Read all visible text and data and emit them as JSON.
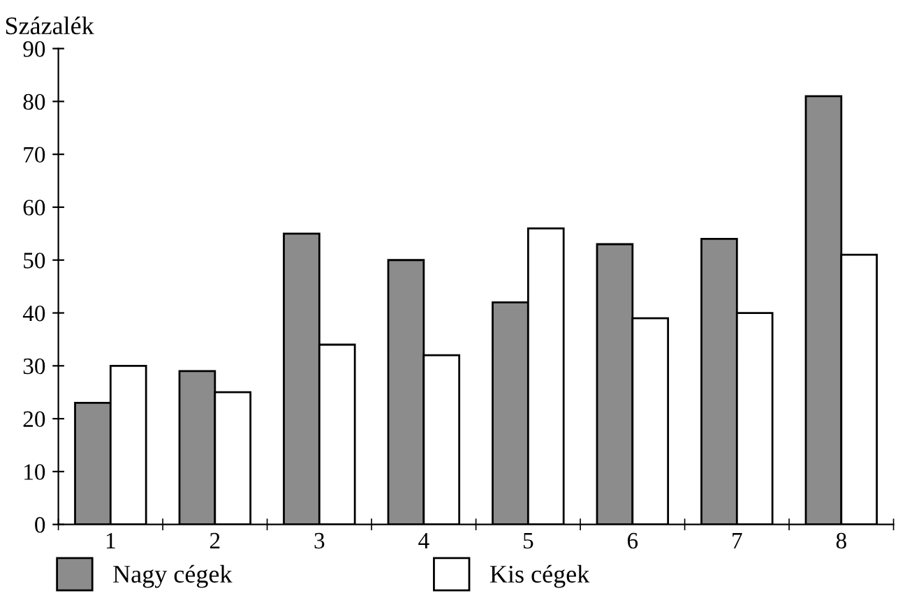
{
  "chart_data": {
    "type": "bar",
    "ylabel": "Százalék",
    "categories": [
      "1",
      "2",
      "3",
      "4",
      "5",
      "6",
      "7",
      "8"
    ],
    "series": [
      {
        "name": "Nagy cégek",
        "color": "#8c8c8c",
        "values": [
          23,
          29,
          55,
          50,
          42,
          53,
          54,
          81
        ]
      },
      {
        "name": "Kis cégek",
        "color": "#ffffff",
        "values": [
          30,
          25,
          34,
          32,
          56,
          39,
          40,
          51
        ]
      }
    ],
    "ylim": [
      0,
      90
    ],
    "yticks": [
      0,
      10,
      20,
      30,
      40,
      50,
      60,
      70,
      80,
      90
    ],
    "grid": false,
    "legend": "bottom"
  }
}
